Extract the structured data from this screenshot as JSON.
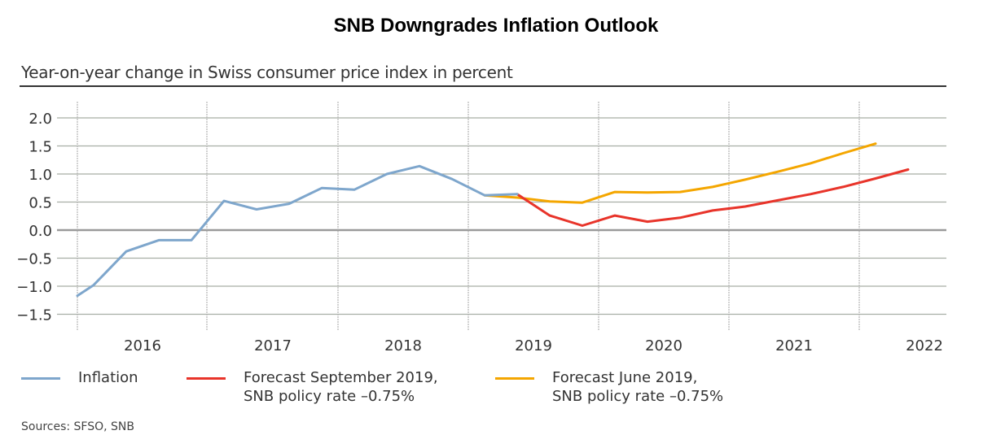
{
  "chart_data": {
    "type": "line",
    "title": "SNB Downgrades Inflation Outlook",
    "subtitle": "Year-on-year change in Swiss consumer price index in percent",
    "xlabel": "",
    "ylabel": "",
    "ylim": [
      -1.8,
      2.2
    ],
    "yticks": [
      2.0,
      1.5,
      1.0,
      0.5,
      0.0,
      -0.5,
      -1.0,
      -1.5
    ],
    "ytick_labels": [
      "2.0",
      "1.5",
      "1.0",
      "0.5",
      "0.0",
      "−0.5",
      "−1.0",
      "−1.5"
    ],
    "xlim": [
      0,
      26.7
    ],
    "xtick_labels": [
      "2016",
      "2017",
      "2018",
      "2019",
      "2020",
      "2021",
      "2022"
    ],
    "x_unit": "quarters since 2015 Q4",
    "grid": true,
    "legend_position": "bottom",
    "series": [
      {
        "name": "Inflation",
        "color": "#7ea6cc",
        "x": [
          0,
          0.5,
          1.5,
          2.5,
          3.5,
          4.5,
          5.5,
          6.5,
          7.5,
          8.5,
          9.5,
          10.5,
          11.5,
          12.5,
          13.5
        ],
        "values": [
          -1.17,
          -0.98,
          -0.38,
          -0.18,
          -0.18,
          0.52,
          0.37,
          0.47,
          0.75,
          0.72,
          1.0,
          1.14,
          0.91,
          0.62,
          0.64
        ]
      },
      {
        "name": "Forecast September 2019, SNB policy rate –0.75%",
        "color": "#e8342a",
        "x": [
          13.5,
          14.5,
          15.5,
          16.5,
          17.5,
          18.5,
          19.5,
          20.5,
          21.5,
          22.5,
          23.5,
          24.5,
          25.5
        ],
        "values": [
          0.64,
          0.26,
          0.08,
          0.26,
          0.15,
          0.22,
          0.35,
          0.42,
          0.53,
          0.64,
          0.77,
          0.92,
          1.08
        ]
      },
      {
        "name": "Forecast June 2019, SNB policy rate –0.75%",
        "color": "#f4a600",
        "x": [
          12.5,
          13.5,
          14.5,
          15.5,
          16.5,
          17.5,
          18.5,
          19.5,
          20.5,
          21.5,
          22.5,
          23.5,
          24.5
        ],
        "values": [
          0.62,
          0.58,
          0.51,
          0.49,
          0.68,
          0.67,
          0.68,
          0.77,
          0.9,
          1.04,
          1.19,
          1.37,
          1.54
        ]
      }
    ]
  },
  "legend": [
    {
      "label": "Inflation",
      "color": "#7ea6cc"
    },
    {
      "label": "Forecast September 2019,\nSNB policy rate –0.75%",
      "color": "#e8342a"
    },
    {
      "label": "Forecast June 2019,\nSNB policy rate –0.75%",
      "color": "#f4a600"
    }
  ],
  "source": "Sources: SFSO, SNB"
}
